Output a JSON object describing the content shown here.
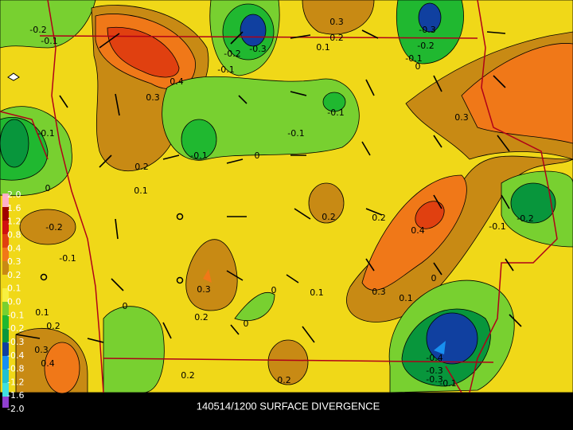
{
  "title": "140514/1200 SURFACE DIVERGENCE",
  "legend": {
    "labels": [
      "2.0",
      "1.6",
      "1.2",
      "0.8",
      "0.4",
      "0.3",
      "0.2",
      "0.1",
      "0.0",
      "-0.1",
      "-0.2",
      "-0.3",
      "-0.4",
      "-0.8",
      "-1.2",
      "-1.6",
      "-2.0"
    ]
  },
  "contour_labels": [
    "-0.2",
    "-0.1",
    "-0.2",
    "-0.3",
    "-0.1",
    "0.3",
    "0.2",
    "0.1",
    "-0.3",
    "-0.2",
    "-0.1",
    "0",
    "0.4",
    "0.3",
    "-0.1",
    "-0.1",
    "0.3",
    "-0.1",
    "0.2",
    "-0.1",
    "0",
    "0.1",
    "0",
    "-0.2",
    "0.2",
    "0.2",
    "0.4",
    "-0.1",
    "-0.2",
    "-0.1",
    "0.3",
    "0.1",
    "0",
    "0.3",
    "0.1",
    "0",
    "0.2",
    "0",
    "0.1",
    "0.2",
    "0.3",
    "0.4",
    "-0.4",
    "-0.3",
    "-0.3",
    "-0.1",
    "0",
    "0.2",
    "0.2"
  ]
}
